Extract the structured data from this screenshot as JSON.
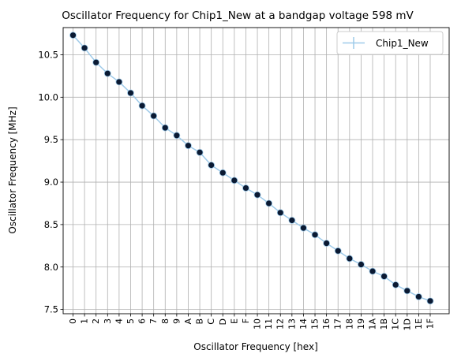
{
  "chart_data": {
    "type": "line",
    "title": "Oscillator Frequency for Chip1_New at a bandgap voltage 598 mV",
    "xlabel": "Oscillator Frequency [hex]",
    "ylabel": "Oscillator Frequency [MHz]",
    "x": [
      "0",
      "1",
      "2",
      "3",
      "4",
      "5",
      "6",
      "7",
      "8",
      "9",
      "A",
      "B",
      "C",
      "D",
      "E",
      "F",
      "10",
      "11",
      "12",
      "13",
      "14",
      "15",
      "16",
      "17",
      "18",
      "19",
      "1A",
      "1B",
      "1C",
      "1D",
      "1E",
      "1F"
    ],
    "ylim": [
      7.45,
      10.82
    ],
    "yticks": [
      7.5,
      8.0,
      8.5,
      9.0,
      9.5,
      10.0,
      10.5
    ],
    "ytick_labels": [
      "7.5",
      "8.0",
      "8.5",
      "9.0",
      "9.5",
      "10.0",
      "10.5"
    ],
    "grid": true,
    "legend_position": "top-right",
    "series": [
      {
        "name": "Chip1_New",
        "values": [
          10.73,
          10.58,
          10.41,
          10.28,
          10.18,
          10.05,
          9.9,
          9.78,
          9.64,
          9.55,
          9.43,
          9.35,
          9.2,
          9.11,
          9.02,
          8.93,
          8.85,
          8.75,
          8.64,
          8.55,
          8.46,
          8.38,
          8.28,
          8.19,
          8.1,
          8.03,
          7.95,
          7.89,
          7.79,
          7.72,
          7.65,
          7.6
        ],
        "line_color": "#9ecae9",
        "marker_color": "#0b1a33"
      }
    ]
  }
}
